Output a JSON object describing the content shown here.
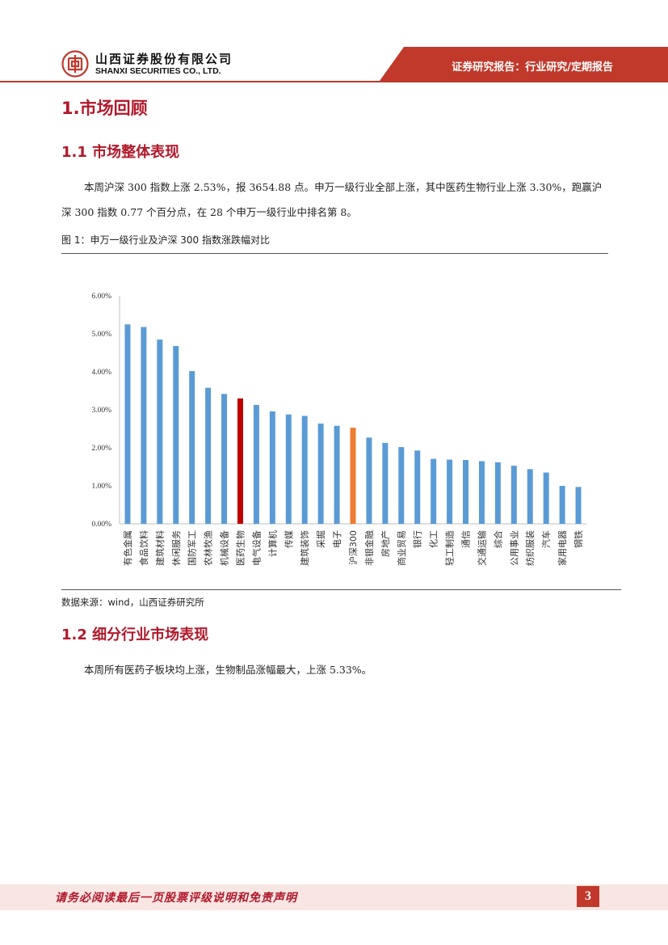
{
  "header": {
    "company_cn": "山西证券股份有限公司",
    "company_en": "SHANXI SECURITIES CO., LTD.",
    "report_type": "证券研究报告：行业研究/定期报告",
    "brand_color": "#c0392b"
  },
  "sections": {
    "s1_title": "1.市场回顾",
    "s11_title": "1.1 市场整体表现",
    "s11_para": "本周沪深 300 指数上涨 2.53%，报 3654.88 点。申万一级行业全部上涨，其中医药生物行业上涨 3.30%，跑赢沪深 300 指数 0.77 个百分点，在 28 个申万一级行业中排名第 8。",
    "fig1_caption": "图 1：申万一级行业及沪深 300 指数涨跌幅对比",
    "fig1_source": "数据来源：wind，山西证券研究所",
    "s12_title": "1.2 细分行业市场表现",
    "s12_para": "本周所有医药子板块均上涨，生物制品涨幅最大，上涨 5.33%。"
  },
  "chart_data": {
    "type": "bar",
    "categories": [
      "有色金属",
      "食品饮料",
      "建筑材料",
      "休闲服务",
      "国防军工",
      "农林牧渔",
      "机械设备",
      "医药生物",
      "电气设备",
      "计算机",
      "传媒",
      "建筑装饰",
      "采掘",
      "电子",
      "沪深300",
      "非银金融",
      "房地产",
      "商业贸易",
      "银行",
      "化工",
      "轻工制造",
      "通信",
      "交通运输",
      "综合",
      "公用事业",
      "纺织服装",
      "汽车",
      "家用电器",
      "钢铁"
    ],
    "values": [
      5.25,
      5.18,
      4.85,
      4.68,
      4.02,
      3.58,
      3.42,
      3.3,
      3.13,
      2.96,
      2.88,
      2.84,
      2.64,
      2.58,
      2.53,
      2.27,
      2.13,
      2.02,
      1.93,
      1.71,
      1.69,
      1.68,
      1.65,
      1.62,
      1.53,
      1.44,
      1.35,
      1.0,
      0.97
    ],
    "ytick_labels": [
      "0.00%",
      "1.00%",
      "2.00%",
      "3.00%",
      "4.00%",
      "5.00%",
      "6.00%"
    ],
    "ylim": [
      0,
      6
    ],
    "colors": {
      "default": "#5b9bd5",
      "highlight": "#c00000",
      "index": "#ed7d31"
    },
    "highlight_category": "医药生物",
    "index_category": "沪深300",
    "grid": false,
    "legend": "none"
  },
  "footer": {
    "disclaimer": "请务必阅读最后一页股票评级说明和免责声明",
    "page_number": "3"
  }
}
